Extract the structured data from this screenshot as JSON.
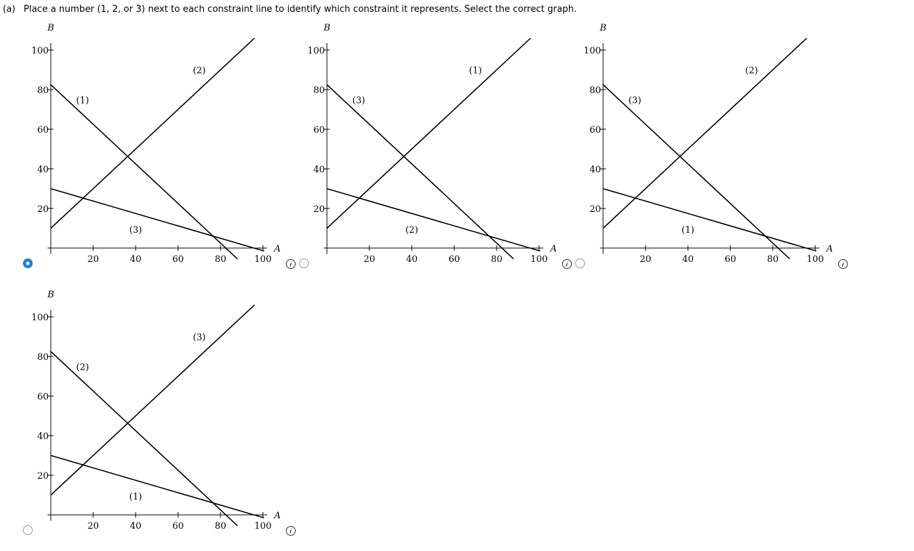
{
  "question": {
    "label": "(a)",
    "text": "Place a number (1, 2, or 3) next to each constraint line to identify which constraint it represents. Select the correct graph."
  },
  "graphs": [
    {
      "x_label": "A",
      "y_label": "B",
      "xlim": [
        -1.5,
        102
      ],
      "ylim": [
        -3,
        103.5
      ],
      "xticks": [
        20,
        40,
        60,
        80,
        100
      ],
      "yticks": [
        20,
        40,
        60,
        80,
        100
      ],
      "lines": [
        {
          "label": "(1)",
          "a": [
            0,
            88
          ],
          "b": [
            82.5,
            -5.5
          ]
        },
        {
          "label": "(2)",
          "a": [
            0,
            96
          ],
          "b": [
            10,
            106
          ]
        },
        {
          "label": "(3)",
          "a": [
            0,
            100.5
          ],
          "b": [
            30,
            -1.5
          ]
        }
      ],
      "selected": true
    },
    {
      "x_label": "A",
      "y_label": "B",
      "xlim": [
        -1.5,
        102
      ],
      "ylim": [
        -3,
        103.5
      ],
      "xticks": [
        20,
        40,
        60,
        80,
        100
      ],
      "yticks": [
        20,
        40,
        60,
        80,
        100
      ],
      "lines": [
        {
          "label": "(3)",
          "a": [
            0,
            88
          ],
          "b": [
            82.5,
            -5.5
          ]
        },
        {
          "label": "(1)",
          "a": [
            0,
            96
          ],
          "b": [
            10,
            106
          ]
        },
        {
          "label": "(2)",
          "a": [
            0,
            100.5
          ],
          "b": [
            30,
            -1.5
          ]
        }
      ],
      "selected": false
    },
    {
      "x_label": "A",
      "y_label": "B",
      "xlim": [
        -1.5,
        102
      ],
      "ylim": [
        -3,
        103.5
      ],
      "xticks": [
        20,
        40,
        60,
        80,
        100
      ],
      "yticks": [
        20,
        40,
        60,
        80,
        100
      ],
      "lines": [
        {
          "label": "(3)",
          "a": [
            0,
            88
          ],
          "b": [
            82.5,
            -5.5
          ]
        },
        {
          "label": "(2)",
          "a": [
            0,
            96
          ],
          "b": [
            10,
            106
          ]
        },
        {
          "label": "(1)",
          "a": [
            0,
            100.5
          ],
          "b": [
            30,
            -1.5
          ]
        }
      ],
      "selected": false
    },
    {
      "x_label": "A",
      "y_label": "B",
      "xlim": [
        -1.5,
        102
      ],
      "ylim": [
        -3,
        103.5
      ],
      "xticks": [
        20,
        40,
        60,
        80,
        100
      ],
      "yticks": [
        20,
        40,
        60,
        80,
        100
      ],
      "lines": [
        {
          "label": "(2)",
          "a": [
            0,
            88
          ],
          "b": [
            82.5,
            -5.5
          ]
        },
        {
          "label": "(3)",
          "a": [
            0,
            96
          ],
          "b": [
            10,
            106
          ]
        },
        {
          "label": "(1)",
          "a": [
            0,
            100.5
          ],
          "b": [
            30,
            -1.5
          ]
        }
      ],
      "selected": false
    }
  ]
}
